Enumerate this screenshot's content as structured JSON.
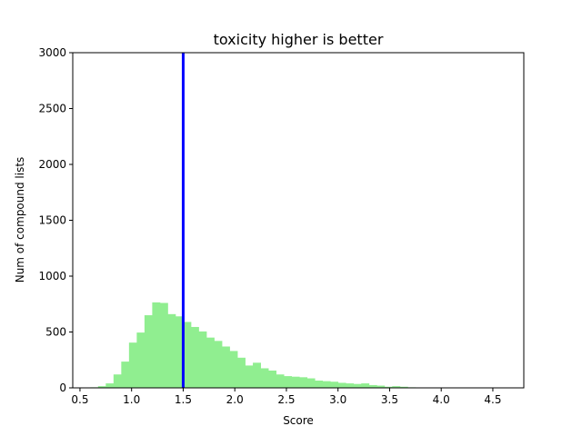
{
  "chart_data": {
    "type": "bar",
    "title": "toxicity higher is better",
    "xlabel": "Score",
    "ylabel": "Num of compound lists",
    "xlim": [
      0.43,
      4.8
    ],
    "ylim": [
      0,
      3000
    ],
    "x_ticks": [
      0.5,
      1.0,
      1.5,
      2.0,
      2.5,
      3.0,
      3.5,
      4.0,
      4.5
    ],
    "x_tick_labels": [
      "0.5",
      "1.0",
      "1.5",
      "2.0",
      "2.5",
      "3.0",
      "3.5",
      "4.0",
      "4.5"
    ],
    "y_ticks": [
      0,
      500,
      1000,
      1500,
      2000,
      2500,
      3000
    ],
    "y_tick_labels": [
      "0",
      "500",
      "1000",
      "1500",
      "2000",
      "2500",
      "3000"
    ],
    "bar_color": "#90ee90",
    "bin_width": 0.075,
    "bin_starts": [
      0.6,
      0.675,
      0.75,
      0.825,
      0.9,
      0.975,
      1.05,
      1.125,
      1.2,
      1.275,
      1.35,
      1.425,
      1.5,
      1.575,
      1.65,
      1.725,
      1.8,
      1.875,
      1.95,
      2.025,
      2.1,
      2.175,
      2.25,
      2.325,
      2.4,
      2.475,
      2.55,
      2.625,
      2.7,
      2.775,
      2.85,
      2.925,
      3.0,
      3.075,
      3.15,
      3.225,
      3.3,
      3.375,
      3.45,
      3.525,
      3.6,
      3.675,
      3.75
    ],
    "values": [
      5,
      15,
      40,
      120,
      235,
      405,
      495,
      650,
      765,
      760,
      660,
      640,
      590,
      545,
      505,
      450,
      420,
      370,
      330,
      270,
      200,
      225,
      175,
      155,
      120,
      105,
      100,
      95,
      85,
      65,
      60,
      55,
      45,
      40,
      35,
      40,
      25,
      20,
      10,
      15,
      10,
      5,
      2
    ],
    "vline": {
      "x": 1.5,
      "color": "#0000ff"
    }
  }
}
